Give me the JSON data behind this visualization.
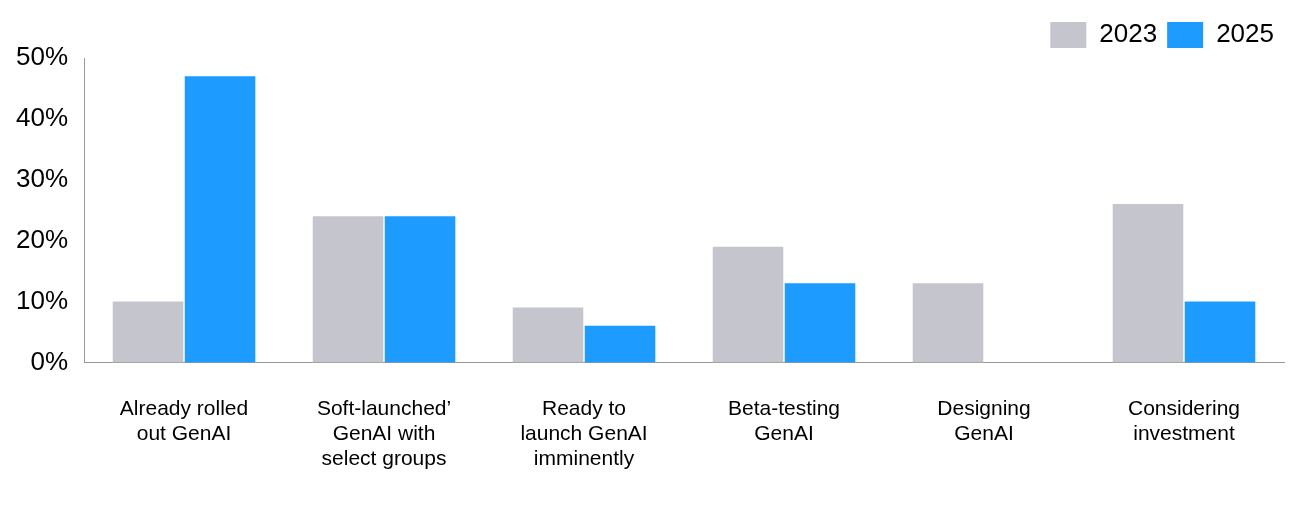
{
  "chart_data": {
    "type": "bar",
    "categories": [
      "Already rolled out GenAI",
      "Soft-launched’ GenAI with select groups",
      "Ready to launch GenAI imminently",
      "Beta-testing GenAI",
      "Designing GenAI",
      "Considering investment"
    ],
    "series": [
      {
        "name": "2023",
        "color": "#c5c5cd",
        "values": [
          10,
          24,
          9,
          19,
          13,
          26
        ]
      },
      {
        "name": "2025",
        "color": "#1e9bff",
        "values": [
          47,
          24,
          6,
          13,
          null,
          10
        ]
      }
    ],
    "ylim": [
      0,
      50
    ],
    "yticks": [
      {
        "value": 0,
        "label": "0%"
      },
      {
        "value": 10,
        "label": "10%"
      },
      {
        "value": 20,
        "label": "20%"
      },
      {
        "value": 30,
        "label": "30%"
      },
      {
        "value": 40,
        "label": "40%"
      },
      {
        "value": 50,
        "label": "50%"
      }
    ],
    "grid": false,
    "legend": "top right"
  }
}
